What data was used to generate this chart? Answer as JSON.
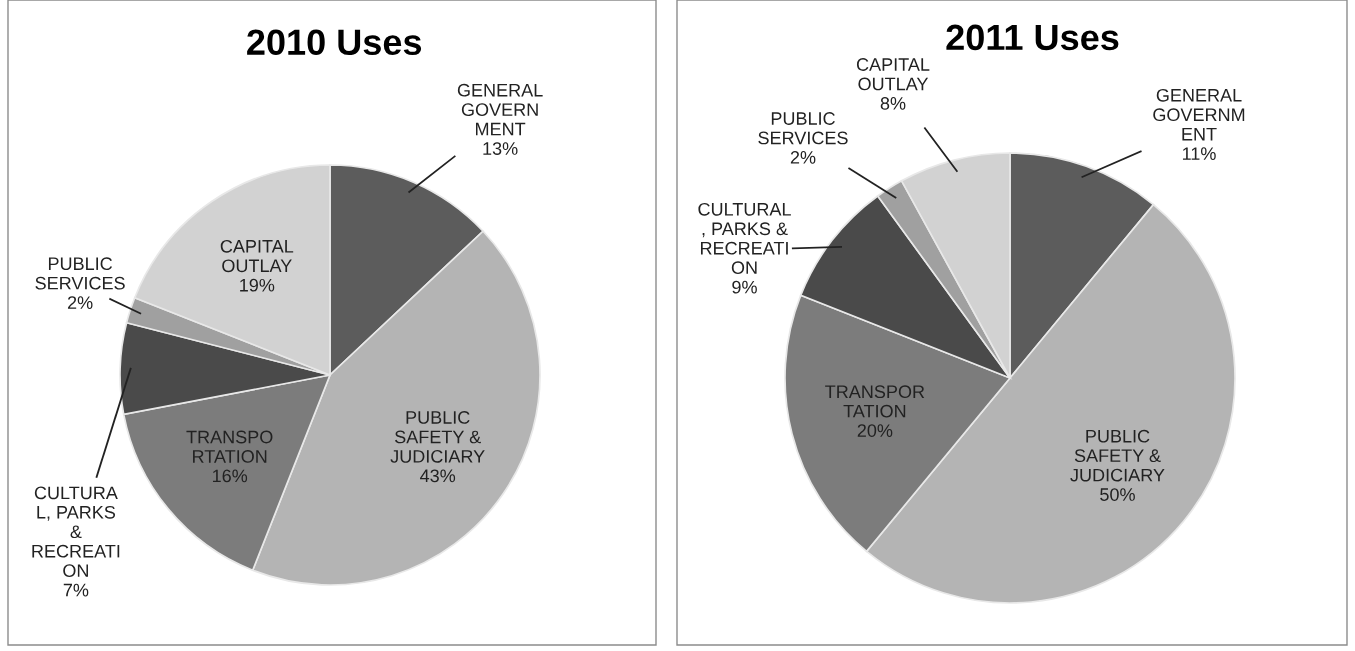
{
  "chart_data": [
    {
      "type": "pie",
      "title": "2010 Uses",
      "categories": [
        "GENERAL\nGOVERN\nMENT",
        "PUBLIC\nSAFETY &\nJUDICIARY",
        "TRANSPO\nRTATION",
        "CULTURA\nL, PARKS\n&\nRECREATI\nON",
        "PUBLIC\nSERVICES",
        "CAPITAL\nOUTLAY"
      ],
      "values": [
        13,
        43,
        16,
        7,
        2,
        19
      ],
      "value_labels": [
        "13%",
        "43%",
        "16%",
        "7%",
        "2%",
        "19%"
      ],
      "colors": [
        "#5c5c5c",
        "#b4b4b4",
        "#7c7c7c",
        "#4a4a4a",
        "#a0a0a0",
        "#d2d2d2"
      ]
    },
    {
      "type": "pie",
      "title": "2011 Uses",
      "categories": [
        "GENERAL\nGOVERNM\nENT",
        "PUBLIC\nSAFETY &\nJUDICIARY",
        "TRANSPOR\nTATION",
        "CULTURAL\n, PARKS &\nRECREATI\nON",
        "PUBLIC\nSERVICES",
        "CAPITAL\nOUTLAY"
      ],
      "values": [
        11,
        50,
        20,
        9,
        2,
        8
      ],
      "value_labels": [
        "11%",
        "50%",
        "20%",
        "9%",
        "2%",
        "8%"
      ],
      "colors": [
        "#5c5c5c",
        "#b4b4b4",
        "#7c7c7c",
        "#4a4a4a",
        "#a0a0a0",
        "#d2d2d2"
      ]
    }
  ]
}
